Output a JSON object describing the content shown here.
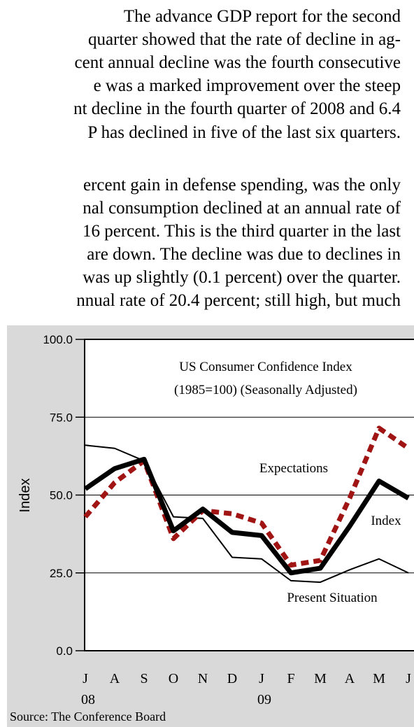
{
  "text": {
    "lines": [
      "The advance GDP report for the second",
      "quarter showed that the rate of decline in ag-",
      "cent annual decline was the fourth consecutive",
      "e was a marked improvement over the steep",
      "nt decline in the fourth quarter of 2008 and 6.4",
      "P has declined in five of the last six quarters.",
      "ercent gain in defense spending, was the only",
      "nal consumption declined at an annual rate of",
      "16 percent. This is the third quarter in the last",
      "are down. The decline was due to declines in",
      "was up slightly (0.1 percent) over the quarter.",
      "nnual rate of 20.4 percent; still high, but much"
    ]
  },
  "chart_data": {
    "type": "line",
    "title": "US Consumer Confidence Index",
    "subtitle": "(1985=100) (Seasonally Adjusted)",
    "y_label": "Index",
    "source": "Source: The Conference Board",
    "categories": [
      "J",
      "A",
      "S",
      "O",
      "N",
      "D",
      "J",
      "F",
      "M",
      "A",
      "M",
      "J"
    ],
    "year_labels": [
      "08",
      null,
      null,
      null,
      null,
      null,
      "09",
      null,
      null,
      null,
      null,
      null
    ],
    "ylim": [
      0,
      100
    ],
    "yticks": [
      {
        "value": 0,
        "label": "0.0"
      },
      {
        "value": 25,
        "label": "25.0"
      },
      {
        "value": 50,
        "label": "50.0"
      },
      {
        "value": 75,
        "label": "75.0"
      },
      {
        "value": 100,
        "label": "100.0"
      }
    ],
    "grid": true,
    "series": [
      {
        "name": "Present Situation",
        "color": "#000000",
        "width": 2,
        "dashed": false,
        "values": [
          66,
          65,
          61,
          43,
          42.5,
          30,
          29.5,
          22.5,
          22,
          26,
          29.5,
          25
        ]
      },
      {
        "name": "Expectations",
        "color": "#a01414",
        "width": 7,
        "dashed": true,
        "values": [
          43,
          54,
          61,
          36,
          45,
          44,
          41,
          27.5,
          29,
          49,
          71.5,
          65
        ]
      },
      {
        "name": "Index",
        "color": "#000000",
        "width": 7,
        "dashed": false,
        "values": [
          52,
          58.5,
          61.5,
          38.5,
          45.5,
          38,
          37,
          25,
          26.5,
          40,
          54.5,
          49
        ]
      }
    ]
  }
}
